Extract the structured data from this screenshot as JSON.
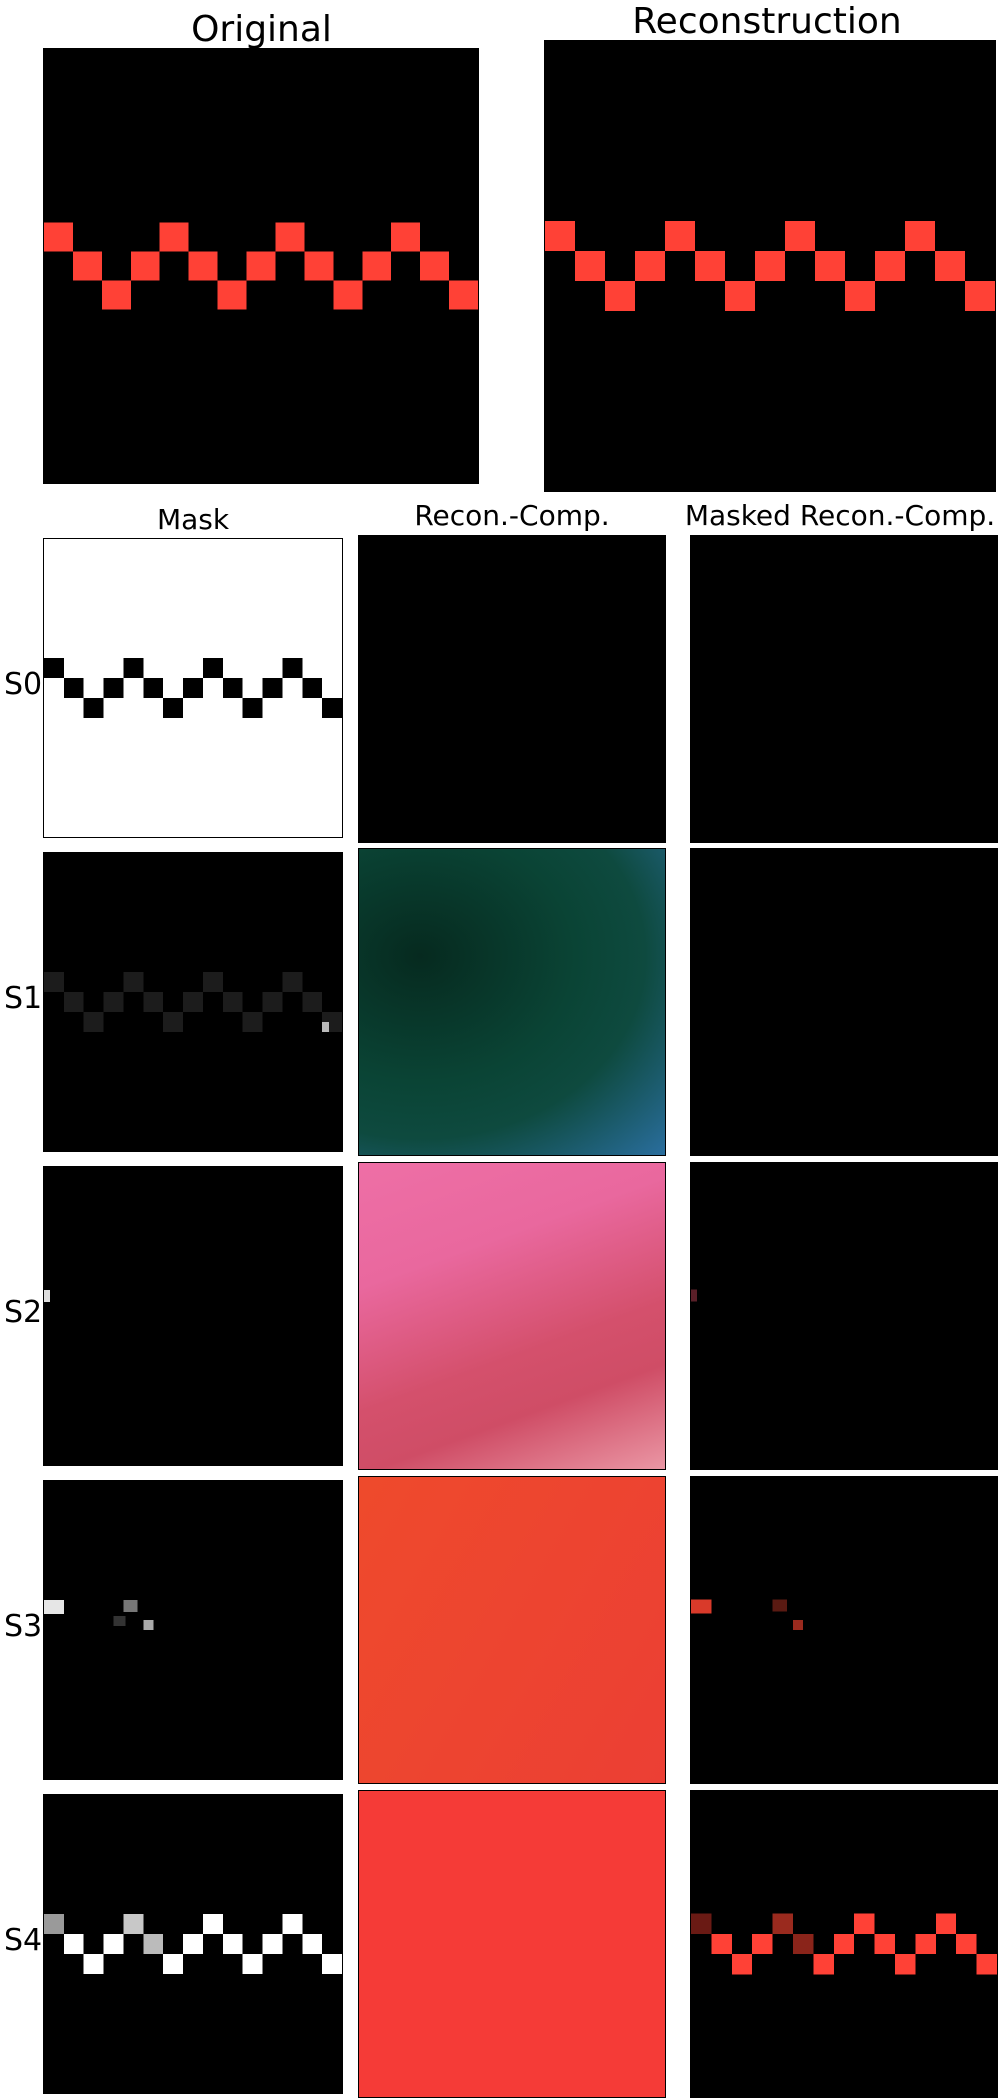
{
  "titles": {
    "original": "Original",
    "reconstruction": "Reconstruction",
    "mask": "Mask",
    "recon_comp": "Recon.-Comp.",
    "masked_recon_comp": "Masked Recon.-Comp."
  },
  "rows": [
    {
      "label": "S0"
    },
    {
      "label": "S1"
    },
    {
      "label": "S2"
    },
    {
      "label": "S3"
    },
    {
      "label": "S4"
    }
  ],
  "colors": {
    "pattern_red": "#ff4136",
    "background": "#000000",
    "mask_white": "#ffffff",
    "s1_comp_teal": "#0b4a3c",
    "s1_comp_blue": "#2a6e9e",
    "s2_comp_pink": "#ee6fa6",
    "s2_comp_rose": "#d4506c",
    "s3_comp_orange": "#ee4530",
    "s4_comp_red": "#f53b37"
  }
}
